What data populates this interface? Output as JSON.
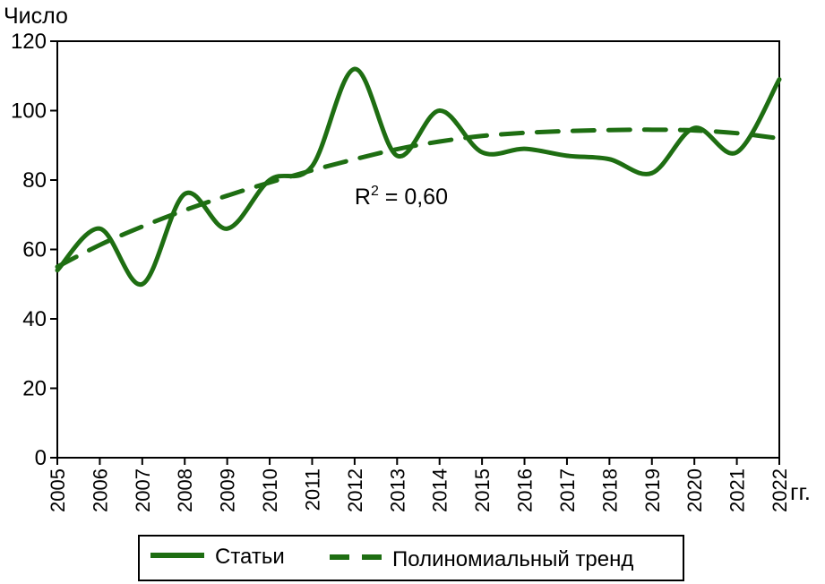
{
  "chart_data": {
    "type": "line",
    "ylabel": "Число",
    "xunit": "гг.",
    "x": [
      "2005",
      "2006",
      "2007",
      "2008",
      "2009",
      "2010",
      "2011",
      "2012",
      "2013",
      "2014",
      "2015",
      "2016",
      "2017",
      "2018",
      "2019",
      "2020",
      "2021",
      "2022"
    ],
    "ylim": [
      0,
      120
    ],
    "yticks": [
      0,
      20,
      40,
      60,
      80,
      100,
      120
    ],
    "grid": false,
    "legend_position": "bottom",
    "series": [
      {
        "name": "Статьи",
        "style": "solid",
        "color": "#1e6e12",
        "values": [
          54,
          66,
          50,
          76,
          66,
          80,
          84,
          112,
          87,
          100,
          88,
          89,
          87,
          86,
          82,
          95,
          88,
          109
        ]
      },
      {
        "name": "Полиномиальный тренд",
        "style": "dashed",
        "color": "#1e6e12",
        "values": [
          55,
          61.3,
          66.6,
          71.3,
          75.5,
          79.3,
          82.8,
          86,
          88.9,
          91.1,
          92.7,
          93.6,
          94.1,
          94.4,
          94.5,
          94.3,
          93.5,
          92
        ]
      }
    ],
    "annotations": [
      {
        "text_base": "R",
        "text_sup": "2",
        "text_rest": " = 0,60",
        "x": "2012",
        "y": 73
      }
    ]
  }
}
